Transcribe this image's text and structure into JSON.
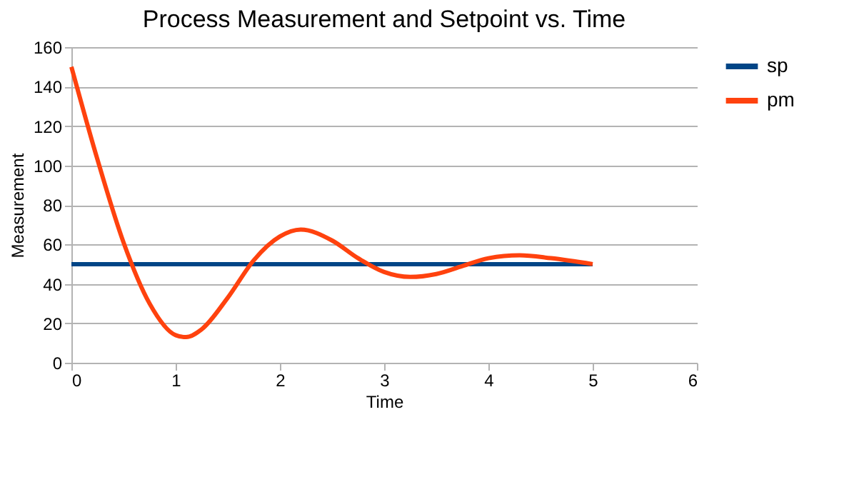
{
  "chart_data": {
    "type": "line",
    "title": "Process Measurement and Setpoint vs. Time",
    "xlabel": "Time",
    "ylabel": "Measurement",
    "series": [
      {
        "name": "sp",
        "color": "#004586",
        "x": [
          0,
          5
        ],
        "values": [
          50,
          50
        ]
      },
      {
        "name": "pm",
        "color": "#ff420e",
        "x": [
          0,
          0.25,
          0.5,
          0.75,
          1,
          1.1,
          1.25,
          1.5,
          1.75,
          2,
          2.2,
          2.5,
          2.75,
          3,
          3.25,
          3.5,
          3.75,
          4,
          4.3,
          4.6,
          5
        ],
        "values": [
          150,
          103,
          61,
          30,
          14,
          13,
          17,
          33,
          52,
          64,
          67.5,
          62,
          53,
          46,
          43.5,
          45,
          49,
          53,
          54.5,
          53,
          50
        ]
      }
    ],
    "xlim": [
      0,
      6
    ],
    "xticks": [
      0,
      1,
      2,
      3,
      4,
      5,
      6
    ],
    "ylim": [
      0,
      160
    ],
    "yticks": [
      0,
      20,
      40,
      60,
      80,
      100,
      120,
      140,
      160
    ],
    "grid": "y",
    "legend": "right",
    "marker": "none",
    "line_style": "solid"
  }
}
